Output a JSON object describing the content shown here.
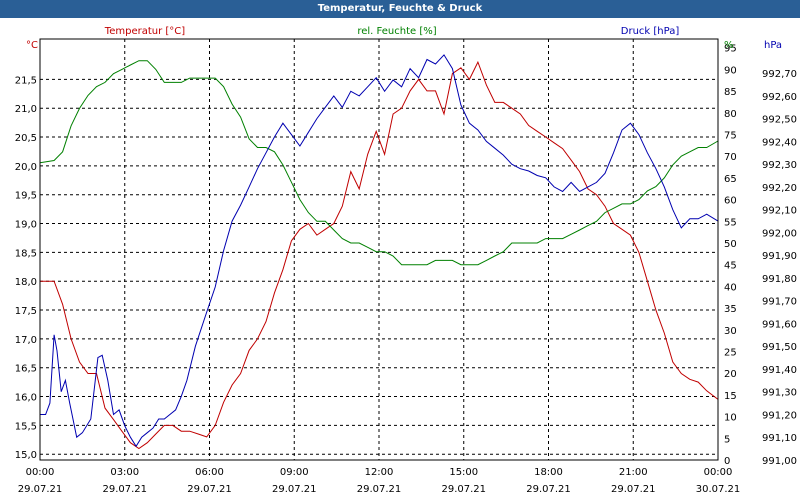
{
  "window": {
    "title": "Temperatur, Feuchte & Druck"
  },
  "colors": {
    "titlebar": "#2a5f96",
    "temperature": "#c00000",
    "humidity": "#008000",
    "pressure": "#0000b0",
    "grid": "#000000"
  },
  "chart_data": {
    "type": "line",
    "grid": true,
    "x_axis": {
      "range": [
        "29.07.21 00:00",
        "30.07.21 00:00"
      ],
      "tick_labels": [
        {
          "time": "00:00",
          "date": "29.07.21"
        },
        {
          "time": "03:00",
          "date": "29.07.21"
        },
        {
          "time": "06:00",
          "date": "29.07.21"
        },
        {
          "time": "09:00",
          "date": "29.07.21"
        },
        {
          "time": "12:00",
          "date": "29.07.21"
        },
        {
          "time": "15:00",
          "date": "29.07.21"
        },
        {
          "time": "18:00",
          "date": "29.07.21"
        },
        {
          "time": "21:00",
          "date": "29.07.21"
        },
        {
          "time": "00:00",
          "date": "30.07.21"
        }
      ]
    },
    "y_axes": {
      "temperature": {
        "legend": "Temperatur [°C]",
        "unit": "°C",
        "ylim": [
          14.9,
          22.2
        ],
        "ticks": [
          "15,0",
          "15,5",
          "16,0",
          "16,5",
          "17,0",
          "17,5",
          "18,0",
          "18,5",
          "19,0",
          "19,5",
          "20,0",
          "20,5",
          "21,0",
          "21,5"
        ]
      },
      "humidity": {
        "legend": "rel. Feuchte [%]",
        "unit": "%",
        "ylim": [
          0,
          97
        ],
        "ticks": [
          "0",
          "5",
          "10",
          "15",
          "20",
          "25",
          "30",
          "35",
          "40",
          "45",
          "50",
          "55",
          "60",
          "65",
          "70",
          "75",
          "80",
          "85",
          "90",
          "95"
        ]
      },
      "pressure": {
        "legend": "Druck [hPa]",
        "unit": "hPa",
        "ylim": [
          991.0,
          992.85
        ],
        "ticks": [
          "991,00",
          "991,10",
          "991,20",
          "991,30",
          "991,40",
          "991,50",
          "991,60",
          "991,70",
          "991,80",
          "991,90",
          "992,00",
          "992,10",
          "992,20",
          "992,30",
          "992,40",
          "992,50",
          "992,60",
          "992,70"
        ]
      }
    },
    "series": [
      {
        "name": "Temperatur [°C]",
        "axis": "temperature",
        "points": [
          [
            0.0,
            18.0
          ],
          [
            0.5,
            18.0
          ],
          [
            0.8,
            17.6
          ],
          [
            1.1,
            17.0
          ],
          [
            1.4,
            16.6
          ],
          [
            1.7,
            16.4
          ],
          [
            2.0,
            16.4
          ],
          [
            2.3,
            15.8
          ],
          [
            2.6,
            15.6
          ],
          [
            2.9,
            15.4
          ],
          [
            3.2,
            15.2
          ],
          [
            3.5,
            15.1
          ],
          [
            3.8,
            15.2
          ],
          [
            4.1,
            15.35
          ],
          [
            4.4,
            15.5
          ],
          [
            4.7,
            15.5
          ],
          [
            5.0,
            15.4
          ],
          [
            5.3,
            15.4
          ],
          [
            5.6,
            15.35
          ],
          [
            5.9,
            15.3
          ],
          [
            6.2,
            15.5
          ],
          [
            6.5,
            15.9
          ],
          [
            6.8,
            16.2
          ],
          [
            7.1,
            16.4
          ],
          [
            7.4,
            16.8
          ],
          [
            7.7,
            17.0
          ],
          [
            8.0,
            17.3
          ],
          [
            8.3,
            17.8
          ],
          [
            8.6,
            18.2
          ],
          [
            8.9,
            18.7
          ],
          [
            9.2,
            18.9
          ],
          [
            9.5,
            19.0
          ],
          [
            9.8,
            18.8
          ],
          [
            10.1,
            18.9
          ],
          [
            10.4,
            19.0
          ],
          [
            10.7,
            19.3
          ],
          [
            11.0,
            19.9
          ],
          [
            11.3,
            19.6
          ],
          [
            11.6,
            20.2
          ],
          [
            11.9,
            20.6
          ],
          [
            12.2,
            20.2
          ],
          [
            12.5,
            20.9
          ],
          [
            12.8,
            21.0
          ],
          [
            13.1,
            21.3
          ],
          [
            13.4,
            21.5
          ],
          [
            13.7,
            21.3
          ],
          [
            14.0,
            21.3
          ],
          [
            14.3,
            20.9
          ],
          [
            14.6,
            21.6
          ],
          [
            14.9,
            21.7
          ],
          [
            15.2,
            21.5
          ],
          [
            15.5,
            21.8
          ],
          [
            15.8,
            21.4
          ],
          [
            16.1,
            21.1
          ],
          [
            16.4,
            21.1
          ],
          [
            16.7,
            21.0
          ],
          [
            17.0,
            20.9
          ],
          [
            17.3,
            20.7
          ],
          [
            17.6,
            20.6
          ],
          [
            17.9,
            20.5
          ],
          [
            18.2,
            20.4
          ],
          [
            18.5,
            20.3
          ],
          [
            18.8,
            20.1
          ],
          [
            19.1,
            19.9
          ],
          [
            19.4,
            19.6
          ],
          [
            19.7,
            19.5
          ],
          [
            20.0,
            19.3
          ],
          [
            20.3,
            19.0
          ],
          [
            20.6,
            18.9
          ],
          [
            20.9,
            18.8
          ],
          [
            21.2,
            18.5
          ],
          [
            21.5,
            18.0
          ],
          [
            21.8,
            17.5
          ],
          [
            22.1,
            17.1
          ],
          [
            22.4,
            16.6
          ],
          [
            22.7,
            16.4
          ],
          [
            23.0,
            16.3
          ],
          [
            23.3,
            16.25
          ],
          [
            23.6,
            16.1
          ],
          [
            24.0,
            15.95
          ]
        ]
      },
      {
        "name": "rel. Feuchte [%]",
        "axis": "humidity",
        "points": [
          [
            0.0,
            68.5
          ],
          [
            0.5,
            69
          ],
          [
            0.8,
            71
          ],
          [
            1.1,
            77
          ],
          [
            1.4,
            81
          ],
          [
            1.7,
            84
          ],
          [
            2.0,
            86
          ],
          [
            2.3,
            87
          ],
          [
            2.6,
            89
          ],
          [
            2.9,
            90
          ],
          [
            3.2,
            91
          ],
          [
            3.5,
            92
          ],
          [
            3.8,
            92
          ],
          [
            4.1,
            90
          ],
          [
            4.4,
            87
          ],
          [
            4.7,
            87
          ],
          [
            5.0,
            87
          ],
          [
            5.3,
            88
          ],
          [
            5.6,
            88
          ],
          [
            5.9,
            88
          ],
          [
            6.2,
            88
          ],
          [
            6.5,
            86
          ],
          [
            6.8,
            82
          ],
          [
            7.1,
            79
          ],
          [
            7.4,
            74
          ],
          [
            7.7,
            72
          ],
          [
            8.0,
            72
          ],
          [
            8.3,
            71
          ],
          [
            8.6,
            68
          ],
          [
            8.9,
            64
          ],
          [
            9.2,
            60
          ],
          [
            9.5,
            57
          ],
          [
            9.8,
            55
          ],
          [
            10.1,
            55
          ],
          [
            10.4,
            53
          ],
          [
            10.7,
            51
          ],
          [
            11.0,
            50
          ],
          [
            11.3,
            50
          ],
          [
            11.6,
            49
          ],
          [
            11.9,
            48
          ],
          [
            12.2,
            48
          ],
          [
            12.5,
            47
          ],
          [
            12.8,
            45
          ],
          [
            13.1,
            45
          ],
          [
            13.4,
            45
          ],
          [
            13.7,
            45
          ],
          [
            14.0,
            46
          ],
          [
            14.3,
            46
          ],
          [
            14.6,
            46
          ],
          [
            14.9,
            45
          ],
          [
            15.2,
            45
          ],
          [
            15.5,
            45
          ],
          [
            15.8,
            46
          ],
          [
            16.1,
            47
          ],
          [
            16.4,
            48
          ],
          [
            16.7,
            50
          ],
          [
            17.0,
            50
          ],
          [
            17.3,
            50
          ],
          [
            17.6,
            50
          ],
          [
            17.9,
            51
          ],
          [
            18.2,
            51
          ],
          [
            18.5,
            51
          ],
          [
            18.8,
            52
          ],
          [
            19.1,
            53
          ],
          [
            19.4,
            54
          ],
          [
            19.7,
            55
          ],
          [
            20.0,
            57
          ],
          [
            20.3,
            58
          ],
          [
            20.6,
            59
          ],
          [
            20.9,
            59
          ],
          [
            21.2,
            60
          ],
          [
            21.5,
            62
          ],
          [
            21.8,
            63
          ],
          [
            22.1,
            65
          ],
          [
            22.4,
            68
          ],
          [
            22.7,
            70
          ],
          [
            23.0,
            71
          ],
          [
            23.3,
            72
          ],
          [
            23.6,
            72
          ],
          [
            24.0,
            73.5
          ]
        ]
      },
      {
        "name": "Druck [hPa]",
        "axis": "pressure",
        "points": [
          [
            0.0,
            991.2
          ],
          [
            0.2,
            991.2
          ],
          [
            0.35,
            991.25
          ],
          [
            0.5,
            991.55
          ],
          [
            0.6,
            991.48
          ],
          [
            0.75,
            991.3
          ],
          [
            0.9,
            991.35
          ],
          [
            1.05,
            991.25
          ],
          [
            1.3,
            991.1
          ],
          [
            1.5,
            991.12
          ],
          [
            1.8,
            991.18
          ],
          [
            2.05,
            991.45
          ],
          [
            2.2,
            991.46
          ],
          [
            2.4,
            991.35
          ],
          [
            2.6,
            991.2
          ],
          [
            2.8,
            991.22
          ],
          [
            3.0,
            991.15
          ],
          [
            3.2,
            991.1
          ],
          [
            3.4,
            991.06
          ],
          [
            3.6,
            991.1
          ],
          [
            3.8,
            991.12
          ],
          [
            4.0,
            991.14
          ],
          [
            4.2,
            991.18
          ],
          [
            4.4,
            991.18
          ],
          [
            4.6,
            991.2
          ],
          [
            4.8,
            991.22
          ],
          [
            5.0,
            991.28
          ],
          [
            5.2,
            991.35
          ],
          [
            5.5,
            991.5
          ],
          [
            5.9,
            991.65
          ],
          [
            6.2,
            991.76
          ],
          [
            6.5,
            991.92
          ],
          [
            6.8,
            992.05
          ],
          [
            7.1,
            992.12
          ],
          [
            7.4,
            992.2
          ],
          [
            7.7,
            992.28
          ],
          [
            8.0,
            992.35
          ],
          [
            8.3,
            992.42
          ],
          [
            8.6,
            992.48
          ],
          [
            8.9,
            992.43
          ],
          [
            9.2,
            992.38
          ],
          [
            9.5,
            992.44
          ],
          [
            9.8,
            992.5
          ],
          [
            10.1,
            992.55
          ],
          [
            10.4,
            992.6
          ],
          [
            10.7,
            992.55
          ],
          [
            11.0,
            992.62
          ],
          [
            11.3,
            992.6
          ],
          [
            11.6,
            992.64
          ],
          [
            11.9,
            992.68
          ],
          [
            12.2,
            992.62
          ],
          [
            12.5,
            992.67
          ],
          [
            12.8,
            992.64
          ],
          [
            13.1,
            992.72
          ],
          [
            13.4,
            992.68
          ],
          [
            13.7,
            992.76
          ],
          [
            14.0,
            992.74
          ],
          [
            14.3,
            992.78
          ],
          [
            14.6,
            992.72
          ],
          [
            14.9,
            992.56
          ],
          [
            15.2,
            992.48
          ],
          [
            15.5,
            992.45
          ],
          [
            15.8,
            992.4
          ],
          [
            16.1,
            992.37
          ],
          [
            16.4,
            992.34
          ],
          [
            16.7,
            992.3
          ],
          [
            17.0,
            992.28
          ],
          [
            17.3,
            992.27
          ],
          [
            17.6,
            992.25
          ],
          [
            17.9,
            992.24
          ],
          [
            18.2,
            992.2
          ],
          [
            18.5,
            992.18
          ],
          [
            18.8,
            992.22
          ],
          [
            19.1,
            992.18
          ],
          [
            19.4,
            992.2
          ],
          [
            19.7,
            992.22
          ],
          [
            20.0,
            992.26
          ],
          [
            20.3,
            992.35
          ],
          [
            20.6,
            992.45
          ],
          [
            20.9,
            992.48
          ],
          [
            21.2,
            992.43
          ],
          [
            21.5,
            992.35
          ],
          [
            21.8,
            992.28
          ],
          [
            22.1,
            992.2
          ],
          [
            22.4,
            992.1
          ],
          [
            22.7,
            992.02
          ],
          [
            23.0,
            992.06
          ],
          [
            23.3,
            992.06
          ],
          [
            23.6,
            992.08
          ],
          [
            24.0,
            992.05
          ]
        ]
      }
    ]
  }
}
